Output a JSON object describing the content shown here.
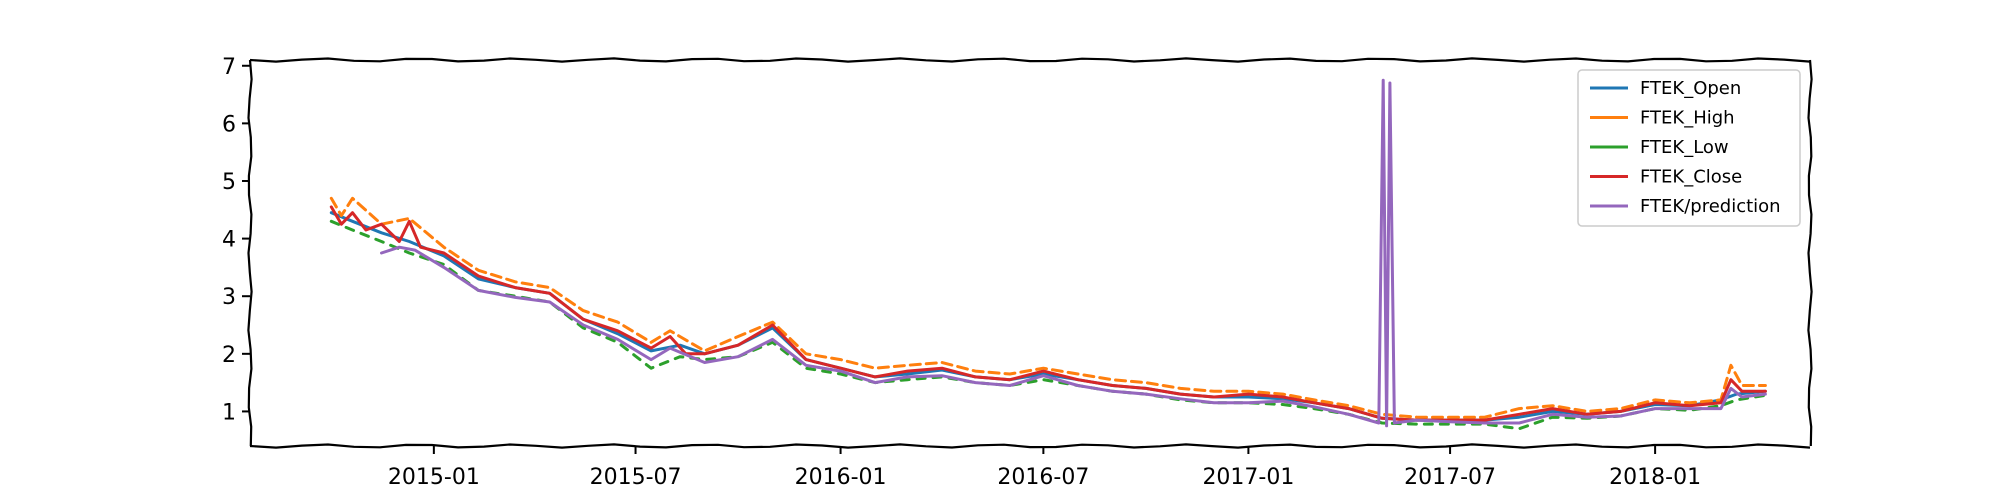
{
  "chart_data": {
    "type": "line",
    "title": "",
    "xlabel": "",
    "ylabel": "",
    "x_ticks": [
      "2015-01",
      "2015-07",
      "2016-01",
      "2016-07",
      "2017-01",
      "2017-07",
      "2018-01"
    ],
    "y_ticks": [
      "1",
      "2",
      "3",
      "4",
      "5",
      "6",
      "7"
    ],
    "xlim": [
      "2014-07-20",
      "2018-05-20"
    ],
    "ylim": [
      0.4,
      7.1
    ],
    "grid": false,
    "legend_position": "top-right",
    "series": [
      {
        "name": "FTEK_Open",
        "color": "#1f77b4",
        "points": [
          [
            "2014-10-01",
            4.45
          ],
          [
            "2014-10-20",
            4.3
          ],
          [
            "2014-11-15",
            4.1
          ],
          [
            "2014-12-10",
            3.95
          ],
          [
            "2015-01-10",
            3.7
          ],
          [
            "2015-02-10",
            3.3
          ],
          [
            "2015-03-15",
            3.15
          ],
          [
            "2015-04-15",
            3.05
          ],
          [
            "2015-05-15",
            2.6
          ],
          [
            "2015-06-15",
            2.35
          ],
          [
            "2015-07-15",
            2.05
          ],
          [
            "2015-08-10",
            2.15
          ],
          [
            "2015-09-01",
            2.0
          ],
          [
            "2015-10-01",
            2.15
          ],
          [
            "2015-11-01",
            2.45
          ],
          [
            "2015-12-01",
            1.9
          ],
          [
            "2016-01-01",
            1.75
          ],
          [
            "2016-02-01",
            1.6
          ],
          [
            "2016-03-01",
            1.65
          ],
          [
            "2016-04-01",
            1.72
          ],
          [
            "2016-05-01",
            1.6
          ],
          [
            "2016-06-01",
            1.55
          ],
          [
            "2016-07-01",
            1.65
          ],
          [
            "2016-08-01",
            1.55
          ],
          [
            "2016-09-01",
            1.45
          ],
          [
            "2016-10-01",
            1.4
          ],
          [
            "2016-11-01",
            1.3
          ],
          [
            "2016-12-01",
            1.25
          ],
          [
            "2017-01-01",
            1.25
          ],
          [
            "2017-02-01",
            1.22
          ],
          [
            "2017-03-01",
            1.15
          ],
          [
            "2017-04-01",
            1.05
          ],
          [
            "2017-05-01",
            0.88
          ],
          [
            "2017-06-01",
            0.85
          ],
          [
            "2017-07-01",
            0.85
          ],
          [
            "2017-08-01",
            0.85
          ],
          [
            "2017-09-01",
            0.9
          ],
          [
            "2017-10-01",
            1.0
          ],
          [
            "2017-11-01",
            0.95
          ],
          [
            "2017-12-01",
            1.0
          ],
          [
            "2018-01-01",
            1.12
          ],
          [
            "2018-02-01",
            1.1
          ],
          [
            "2018-03-01",
            1.2
          ],
          [
            "2018-03-15",
            1.3
          ],
          [
            "2018-04-10",
            1.35
          ]
        ]
      },
      {
        "name": "FTEK_High",
        "color": "#ff7f0e",
        "points": [
          [
            "2014-10-01",
            4.7
          ],
          [
            "2014-10-10",
            4.4
          ],
          [
            "2014-10-20",
            4.7
          ],
          [
            "2014-11-15",
            4.25
          ],
          [
            "2014-12-10",
            4.35
          ],
          [
            "2015-01-10",
            3.85
          ],
          [
            "2015-02-10",
            3.45
          ],
          [
            "2015-03-15",
            3.25
          ],
          [
            "2015-04-15",
            3.15
          ],
          [
            "2015-05-15",
            2.75
          ],
          [
            "2015-06-15",
            2.55
          ],
          [
            "2015-07-15",
            2.2
          ],
          [
            "2015-08-01",
            2.4
          ],
          [
            "2015-09-01",
            2.05
          ],
          [
            "2015-10-01",
            2.3
          ],
          [
            "2015-11-01",
            2.55
          ],
          [
            "2015-12-01",
            2.0
          ],
          [
            "2016-01-01",
            1.9
          ],
          [
            "2016-02-01",
            1.75
          ],
          [
            "2016-03-01",
            1.8
          ],
          [
            "2016-04-01",
            1.85
          ],
          [
            "2016-05-01",
            1.7
          ],
          [
            "2016-06-01",
            1.65
          ],
          [
            "2016-07-01",
            1.75
          ],
          [
            "2016-08-01",
            1.65
          ],
          [
            "2016-09-01",
            1.55
          ],
          [
            "2016-10-01",
            1.5
          ],
          [
            "2016-11-01",
            1.4
          ],
          [
            "2016-12-01",
            1.35
          ],
          [
            "2017-01-01",
            1.35
          ],
          [
            "2017-02-01",
            1.3
          ],
          [
            "2017-03-01",
            1.2
          ],
          [
            "2017-04-01",
            1.1
          ],
          [
            "2017-05-01",
            0.95
          ],
          [
            "2017-06-01",
            0.9
          ],
          [
            "2017-07-01",
            0.9
          ],
          [
            "2017-08-01",
            0.9
          ],
          [
            "2017-09-01",
            1.05
          ],
          [
            "2017-10-01",
            1.1
          ],
          [
            "2017-11-01",
            1.0
          ],
          [
            "2017-12-01",
            1.05
          ],
          [
            "2018-01-01",
            1.2
          ],
          [
            "2018-02-01",
            1.15
          ],
          [
            "2018-03-01",
            1.2
          ],
          [
            "2018-03-10",
            1.8
          ],
          [
            "2018-03-20",
            1.45
          ],
          [
            "2018-04-10",
            1.45
          ]
        ]
      },
      {
        "name": "FTEK_Low",
        "color": "#2ca02c",
        "points": [
          [
            "2014-10-01",
            4.3
          ],
          [
            "2014-10-20",
            4.15
          ],
          [
            "2014-11-15",
            3.95
          ],
          [
            "2014-12-10",
            3.75
          ],
          [
            "2015-01-10",
            3.55
          ],
          [
            "2015-02-10",
            3.1
          ],
          [
            "2015-03-15",
            3.0
          ],
          [
            "2015-04-15",
            2.9
          ],
          [
            "2015-05-15",
            2.45
          ],
          [
            "2015-06-15",
            2.2
          ],
          [
            "2015-07-15",
            1.75
          ],
          [
            "2015-08-10",
            1.95
          ],
          [
            "2015-09-01",
            1.9
          ],
          [
            "2015-10-01",
            1.95
          ],
          [
            "2015-11-01",
            2.2
          ],
          [
            "2015-12-01",
            1.75
          ],
          [
            "2016-01-01",
            1.65
          ],
          [
            "2016-02-01",
            1.5
          ],
          [
            "2016-03-01",
            1.55
          ],
          [
            "2016-04-01",
            1.6
          ],
          [
            "2016-05-01",
            1.5
          ],
          [
            "2016-06-01",
            1.45
          ],
          [
            "2016-07-01",
            1.55
          ],
          [
            "2016-08-01",
            1.45
          ],
          [
            "2016-09-01",
            1.35
          ],
          [
            "2016-10-01",
            1.3
          ],
          [
            "2016-11-01",
            1.2
          ],
          [
            "2016-12-01",
            1.15
          ],
          [
            "2017-01-01",
            1.15
          ],
          [
            "2017-02-01",
            1.12
          ],
          [
            "2017-03-01",
            1.05
          ],
          [
            "2017-04-01",
            0.95
          ],
          [
            "2017-05-01",
            0.8
          ],
          [
            "2017-06-01",
            0.78
          ],
          [
            "2017-07-01",
            0.78
          ],
          [
            "2017-08-01",
            0.78
          ],
          [
            "2017-09-01",
            0.7
          ],
          [
            "2017-10-01",
            0.9
          ],
          [
            "2017-11-01",
            0.88
          ],
          [
            "2017-12-01",
            0.92
          ],
          [
            "2018-01-01",
            1.05
          ],
          [
            "2018-02-01",
            1.02
          ],
          [
            "2018-03-01",
            1.1
          ],
          [
            "2018-03-15",
            1.2
          ],
          [
            "2018-04-10",
            1.28
          ]
        ]
      },
      {
        "name": "FTEK_Close",
        "color": "#d62728",
        "points": [
          [
            "2014-10-01",
            4.55
          ],
          [
            "2014-10-10",
            4.25
          ],
          [
            "2014-10-20",
            4.45
          ],
          [
            "2014-11-01",
            4.15
          ],
          [
            "2014-11-15",
            4.25
          ],
          [
            "2014-12-01",
            3.95
          ],
          [
            "2014-12-10",
            4.3
          ],
          [
            "2014-12-20",
            3.85
          ],
          [
            "2015-01-10",
            3.75
          ],
          [
            "2015-02-10",
            3.35
          ],
          [
            "2015-03-15",
            3.15
          ],
          [
            "2015-04-15",
            3.05
          ],
          [
            "2015-05-15",
            2.6
          ],
          [
            "2015-06-15",
            2.4
          ],
          [
            "2015-07-15",
            2.1
          ],
          [
            "2015-08-01",
            2.3
          ],
          [
            "2015-08-15",
            2.0
          ],
          [
            "2015-09-01",
            2.0
          ],
          [
            "2015-10-01",
            2.15
          ],
          [
            "2015-11-01",
            2.5
          ],
          [
            "2015-12-01",
            1.9
          ],
          [
            "2016-01-01",
            1.75
          ],
          [
            "2016-02-01",
            1.6
          ],
          [
            "2016-03-01",
            1.7
          ],
          [
            "2016-04-01",
            1.75
          ],
          [
            "2016-05-01",
            1.6
          ],
          [
            "2016-06-01",
            1.55
          ],
          [
            "2016-07-01",
            1.7
          ],
          [
            "2016-08-01",
            1.55
          ],
          [
            "2016-09-01",
            1.45
          ],
          [
            "2016-10-01",
            1.4
          ],
          [
            "2016-11-01",
            1.3
          ],
          [
            "2016-12-01",
            1.25
          ],
          [
            "2017-01-01",
            1.3
          ],
          [
            "2017-02-01",
            1.25
          ],
          [
            "2017-03-01",
            1.15
          ],
          [
            "2017-04-01",
            1.05
          ],
          [
            "2017-05-01",
            0.88
          ],
          [
            "2017-06-01",
            0.85
          ],
          [
            "2017-07-01",
            0.85
          ],
          [
            "2017-08-01",
            0.85
          ],
          [
            "2017-09-01",
            0.95
          ],
          [
            "2017-10-01",
            1.05
          ],
          [
            "2017-11-01",
            0.95
          ],
          [
            "2017-12-01",
            1.0
          ],
          [
            "2018-01-01",
            1.15
          ],
          [
            "2018-02-01",
            1.1
          ],
          [
            "2018-03-01",
            1.15
          ],
          [
            "2018-03-10",
            1.55
          ],
          [
            "2018-03-20",
            1.35
          ],
          [
            "2018-04-10",
            1.35
          ]
        ]
      },
      {
        "name": "FTEK/prediction",
        "color": "#9467bd",
        "points": [
          [
            "2014-11-15",
            3.75
          ],
          [
            "2014-12-01",
            3.85
          ],
          [
            "2014-12-15",
            3.8
          ],
          [
            "2015-01-10",
            3.5
          ],
          [
            "2015-02-10",
            3.1
          ],
          [
            "2015-03-15",
            2.98
          ],
          [
            "2015-04-15",
            2.9
          ],
          [
            "2015-05-15",
            2.5
          ],
          [
            "2015-06-15",
            2.25
          ],
          [
            "2015-07-15",
            1.9
          ],
          [
            "2015-08-01",
            2.1
          ],
          [
            "2015-09-01",
            1.85
          ],
          [
            "2015-10-01",
            1.95
          ],
          [
            "2015-11-01",
            2.25
          ],
          [
            "2015-12-01",
            1.8
          ],
          [
            "2016-01-01",
            1.7
          ],
          [
            "2016-02-01",
            1.5
          ],
          [
            "2016-03-01",
            1.6
          ],
          [
            "2016-04-01",
            1.62
          ],
          [
            "2016-05-01",
            1.5
          ],
          [
            "2016-06-01",
            1.45
          ],
          [
            "2016-07-01",
            1.62
          ],
          [
            "2016-08-01",
            1.45
          ],
          [
            "2016-09-01",
            1.35
          ],
          [
            "2016-10-01",
            1.3
          ],
          [
            "2016-11-01",
            1.22
          ],
          [
            "2016-12-01",
            1.15
          ],
          [
            "2017-01-01",
            1.15
          ],
          [
            "2017-02-01",
            1.18
          ],
          [
            "2017-03-01",
            1.08
          ],
          [
            "2017-04-01",
            0.95
          ],
          [
            "2017-04-28",
            0.8
          ],
          [
            "2017-05-02",
            6.75
          ],
          [
            "2017-05-05",
            0.75
          ],
          [
            "2017-05-08",
            6.7
          ],
          [
            "2017-05-12",
            0.8
          ],
          [
            "2017-06-01",
            0.85
          ],
          [
            "2017-07-01",
            0.82
          ],
          [
            "2017-08-01",
            0.8
          ],
          [
            "2017-09-01",
            0.8
          ],
          [
            "2017-10-01",
            0.95
          ],
          [
            "2017-11-01",
            0.9
          ],
          [
            "2017-12-01",
            0.92
          ],
          [
            "2018-01-01",
            1.05
          ],
          [
            "2018-02-01",
            1.05
          ],
          [
            "2018-03-01",
            1.05
          ],
          [
            "2018-03-10",
            1.4
          ],
          [
            "2018-03-20",
            1.25
          ],
          [
            "2018-04-10",
            1.3
          ]
        ]
      }
    ]
  }
}
